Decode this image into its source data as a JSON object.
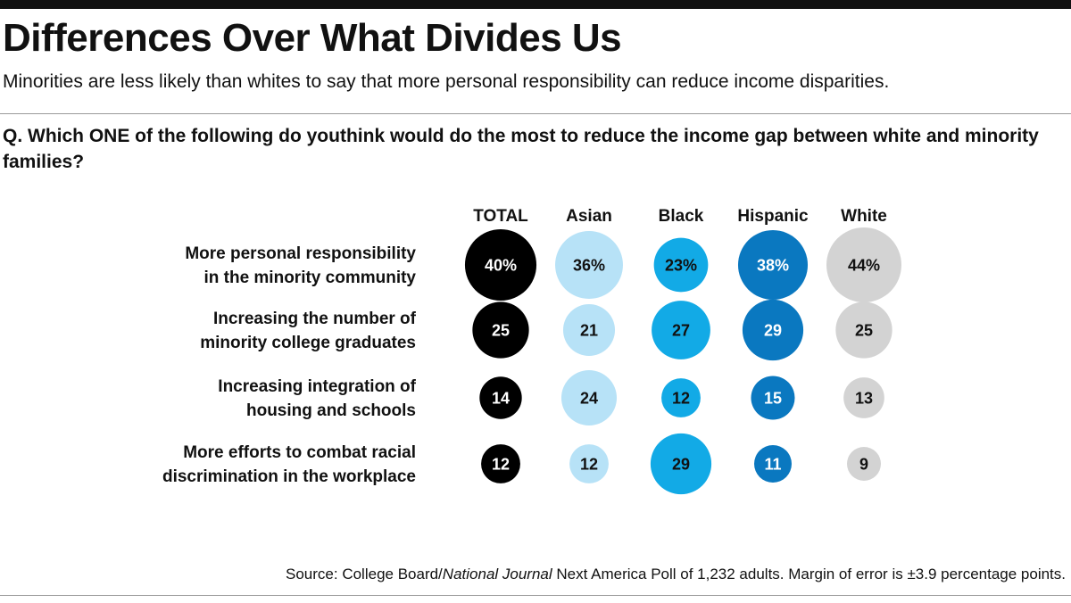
{
  "header": {
    "title": "Differences Over What Divides Us",
    "subtitle": "Minorities are less likely than whites to say that more personal responsibility can reduce income disparities.",
    "question": "Q. Which ONE of the following do youthink would do the most to reduce the income gap between white and minority families?"
  },
  "footer": {
    "source_prefix": "Source: College Board/",
    "source_italic": "National Journal",
    "source_suffix": " Next America Poll of 1,232 adults. Margin of error is ±3.9 percentage points."
  },
  "chart_data": {
    "type": "bubble",
    "title": "Differences Over What Divides Us",
    "categories": [
      [
        "More personal responsibility",
        "in the minority community"
      ],
      [
        "Increasing the number of",
        "minority college graduates"
      ],
      [
        "Increasing integration of",
        "housing and schools"
      ],
      [
        "More efforts to combat racial",
        "discrimination in the workplace"
      ]
    ],
    "series": [
      {
        "name": "TOTAL",
        "color": "#000000",
        "text_color": "#ffffff",
        "values": [
          40,
          25,
          14,
          12
        ]
      },
      {
        "name": "Asian",
        "color": "#b7e2f7",
        "text_color": "#111111",
        "values": [
          36,
          21,
          24,
          12
        ]
      },
      {
        "name": "Black",
        "color": "#12aae6",
        "text_color": "#111111",
        "values": [
          23,
          27,
          12,
          29
        ]
      },
      {
        "name": "Hispanic",
        "color": "#0a78c0",
        "text_color": "#ffffff",
        "values": [
          38,
          29,
          15,
          11
        ]
      },
      {
        "name": "White",
        "color": "#d3d3d3",
        "text_color": "#111111",
        "values": [
          44,
          25,
          13,
          9
        ]
      }
    ],
    "first_row_suffix": "%",
    "unit": "percent"
  }
}
